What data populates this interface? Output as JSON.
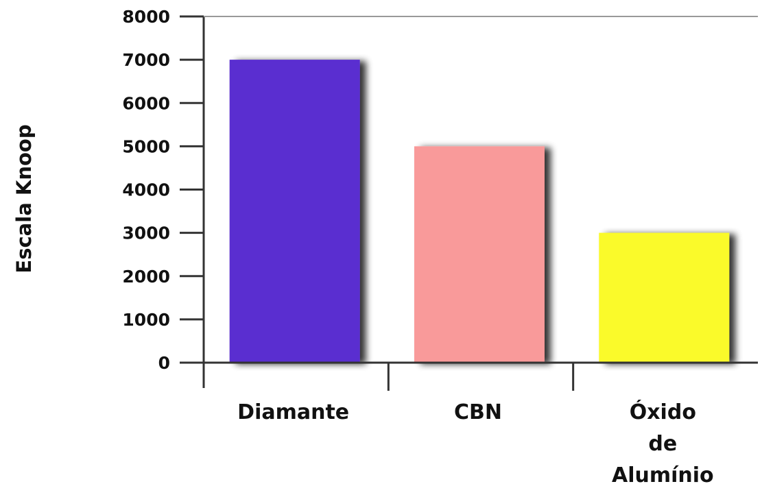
{
  "chart_data": {
    "type": "bar",
    "title": "",
    "xlabel": "",
    "ylabel": "Escala Knoop",
    "categories": [
      [
        "Diamante"
      ],
      [
        "CBN"
      ],
      [
        "Óxido",
        "de",
        "Alumínio"
      ]
    ],
    "values": [
      7000,
      5000,
      3000
    ],
    "colors": [
      "#5a2fd0",
      "#f99a9a",
      "#fafa2c"
    ],
    "ylim": [
      0,
      8000
    ],
    "yticks": [
      "0",
      "1000",
      "2000",
      "3000",
      "4000",
      "5000",
      "6000",
      "7000",
      "8000"
    ],
    "grid": false,
    "legend": "none"
  }
}
